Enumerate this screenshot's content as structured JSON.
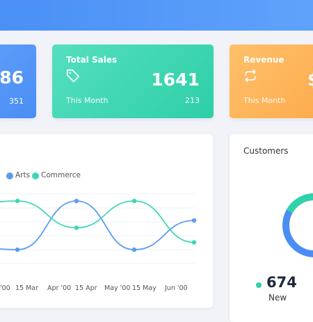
{
  "colors": {
    "blue": "#4a90f5",
    "green": "#2ecfa6",
    "orange": "#fdab4c",
    "series_blue": "#5b9cf2",
    "series_green": "#40d6b5"
  },
  "cards": {
    "left": {
      "big": "86",
      "subnum": "351"
    },
    "sales": {
      "title": "Total Sales",
      "icon": "tag-icon",
      "big": "1641",
      "sub": "This Month",
      "subnum": "213"
    },
    "revenue": {
      "title": "Revenue",
      "icon": "repeat-icon",
      "big": "$",
      "sub": "This Month"
    }
  },
  "chart": {
    "legend": [
      "Arts",
      "Commerce"
    ],
    "x_ticks": [
      "'00",
      "15 Mar",
      "Apr '00",
      "15 Apr",
      "May '00",
      "15 May",
      "Jun '00"
    ]
  },
  "chart_data": {
    "type": "line",
    "series": [
      {
        "name": "Arts",
        "color": "#5b9cf2",
        "points": [
          [
            0,
            0.1
          ],
          [
            1,
            0.0
          ],
          [
            2,
            1.0
          ],
          [
            3,
            0.0
          ],
          [
            4,
            0.6
          ]
        ]
      },
      {
        "name": "Commerce",
        "color": "#40d6b5",
        "points": [
          [
            0,
            0.9
          ],
          [
            1,
            1.0
          ],
          [
            2,
            0.45
          ],
          [
            3,
            1.0
          ],
          [
            4,
            0.15
          ]
        ]
      }
    ]
  },
  "customers": {
    "title": "Customers",
    "count": "674",
    "label": "New"
  }
}
